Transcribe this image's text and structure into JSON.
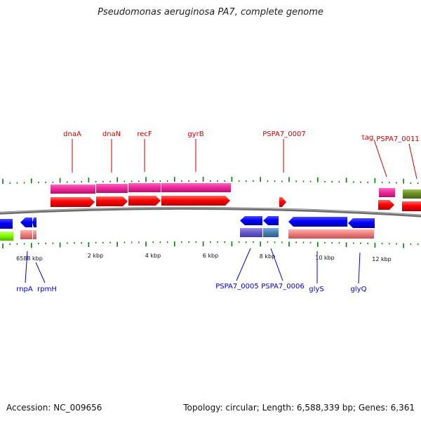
{
  "title": "Pseudomonas aeruginosa PA7, complete genome",
  "footer": {
    "accession": "Accession: NC_009656",
    "summary": "Topology: circular; Length: 6,588,339 bp; Genes: 6,361"
  },
  "scale_labels": [
    "6588 kbp",
    "2 kbp",
    "4 kbp",
    "6 kbp",
    "8 kbp",
    "10 kbp",
    "12 kbp"
  ],
  "genes_top": [
    "dnaA",
    "dnaN",
    "recF",
    "gyrB",
    "PSPA7_0007",
    "tag",
    "PSPA7_0011"
  ],
  "genes_bottom": [
    "rnpA",
    "rpmH",
    "PSPA7_0005",
    "PSPA7_0006",
    "glyS",
    "glyQ"
  ],
  "colors": {
    "gene_red": "#ff0000",
    "cds_pink": "#ff33aa",
    "gene_blue": "#0000ff",
    "cds_purple": "#6a5acd",
    "cds_steel": "#4682b4",
    "cds_salmon": "#f08080",
    "cds_green": "#7fff00",
    "cds_olive": "#6b8e23",
    "tick_green": "#0a7a0a",
    "backbone": "#777777"
  }
}
